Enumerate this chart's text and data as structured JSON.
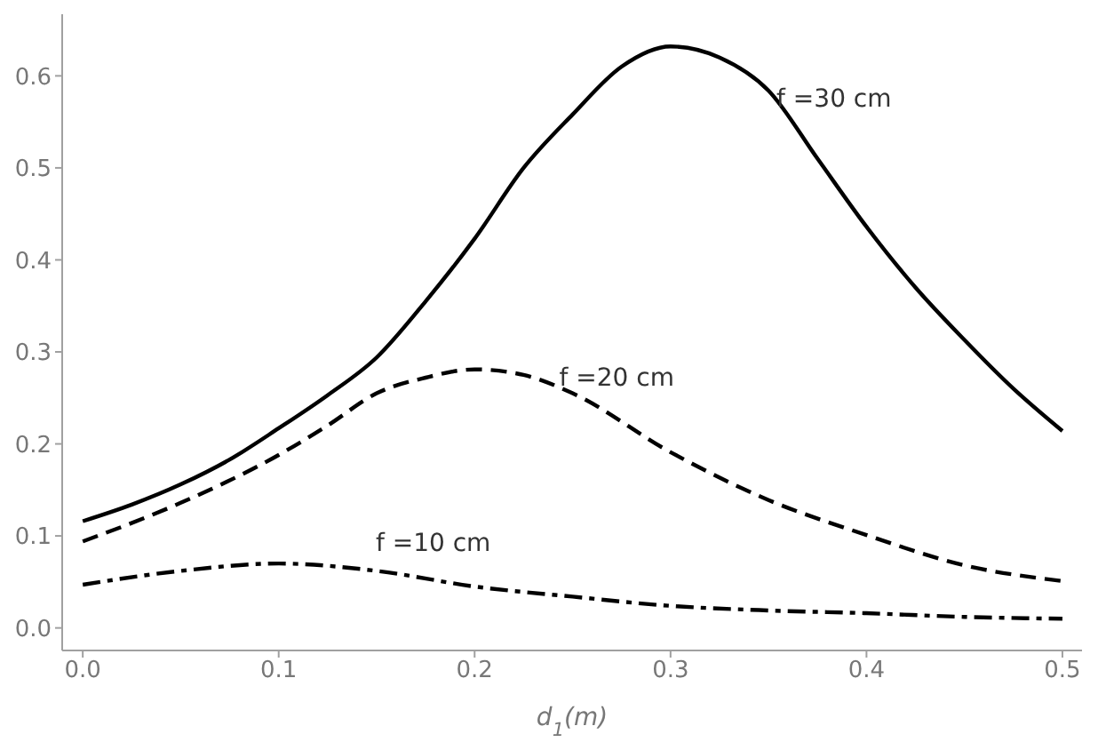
{
  "chart_data": {
    "type": "line",
    "xlabel": "d$_{1}$(m)",
    "xlim": [
      -0.0105,
      0.51
    ],
    "ylim": [
      -0.0245,
      0.667
    ],
    "xticks": [
      {
        "value": 0,
        "label": "0.0"
      },
      0.1,
      0.2,
      0.3,
      0.4,
      0.5
    ],
    "yticks": [
      {
        "value": 0,
        "label": "0.0"
      },
      0.1,
      0.2,
      0.3,
      0.4,
      0.5,
      0.6
    ],
    "grid": false,
    "legend": false,
    "marker": "none",
    "series": [
      {
        "name": "f =30 cm",
        "color": "#000000",
        "line_style": "solid",
        "x": [
          0,
          0.025,
          0.05,
          0.075,
          0.1,
          0.125,
          0.15,
          0.175,
          0.2,
          0.225,
          0.25,
          0.275,
          0.3,
          0.325,
          0.35,
          0.375,
          0.4,
          0.425,
          0.45,
          0.475,
          0.5
        ],
        "values": [
          0.116,
          0.134,
          0.156,
          0.183,
          0.217,
          0.253,
          0.294,
          0.355,
          0.423,
          0.5,
          0.558,
          0.61,
          0.632,
          0.62,
          0.584,
          0.51,
          0.436,
          0.37,
          0.313,
          0.26,
          0.214
        ]
      },
      {
        "name": "f =20 cm",
        "color": "#000000",
        "line_style": "dashed",
        "x": [
          0,
          0.05,
          0.1,
          0.125,
          0.15,
          0.175,
          0.2,
          0.225,
          0.25,
          0.3,
          0.35,
          0.4,
          0.45,
          0.5
        ],
        "values": [
          0.094,
          0.136,
          0.188,
          0.22,
          0.255,
          0.272,
          0.281,
          0.275,
          0.255,
          0.191,
          0.139,
          0.101,
          0.068,
          0.051
        ]
      },
      {
        "name": "f =10 cm",
        "color": "#000000",
        "line_style": "dashdot",
        "x": [
          0,
          0.05,
          0.1,
          0.15,
          0.2,
          0.25,
          0.3,
          0.35,
          0.4,
          0.45,
          0.5
        ],
        "values": [
          0.047,
          0.062,
          0.07,
          0.062,
          0.045,
          0.034,
          0.024,
          0.019,
          0.016,
          0.012,
          0.01
        ]
      }
    ]
  }
}
